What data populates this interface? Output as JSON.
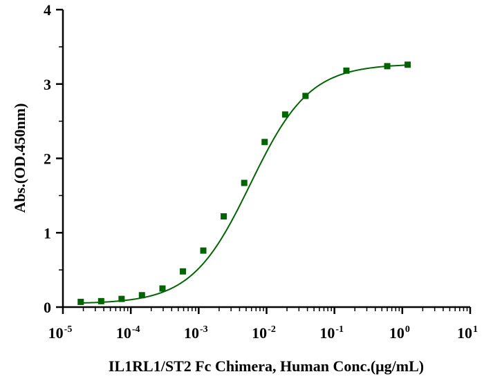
{
  "chart_data": {
    "type": "scatter",
    "title": "",
    "xlabel": "IL1RL1/ST2 Fc Chimera, Human Conc.(μg/mL)",
    "ylabel": "Abs.(OD.450nm)",
    "xscale": "log",
    "xlim": [
      1e-05,
      10
    ],
    "ylim": [
      0,
      4
    ],
    "x_ticks": [
      {
        "base": "10",
        "exp": "-5"
      },
      {
        "base": "10",
        "exp": "-4"
      },
      {
        "base": "10",
        "exp": "-3"
      },
      {
        "base": "10",
        "exp": "-2"
      },
      {
        "base": "10",
        "exp": "-1"
      },
      {
        "base": "10",
        "exp": "0"
      },
      {
        "base": "10",
        "exp": "1"
      }
    ],
    "y_ticks": [
      "0",
      "1",
      "2",
      "3",
      "4"
    ],
    "grid": false,
    "legend": "none",
    "series": [
      {
        "color": "#006400",
        "marker": "square",
        "fit": "4PL",
        "x": [
          1.83e-05,
          3.66e-05,
          7.32e-05,
          0.000146,
          0.000293,
          0.000586,
          0.00117,
          0.00234,
          0.00469,
          0.00938,
          0.0188,
          0.0375,
          0.15,
          0.6,
          1.2
        ],
        "y": [
          0.07,
          0.08,
          0.11,
          0.16,
          0.25,
          0.48,
          0.76,
          1.22,
          1.67,
          2.22,
          2.59,
          2.84,
          3.18,
          3.24,
          3.26
        ]
      }
    ]
  }
}
